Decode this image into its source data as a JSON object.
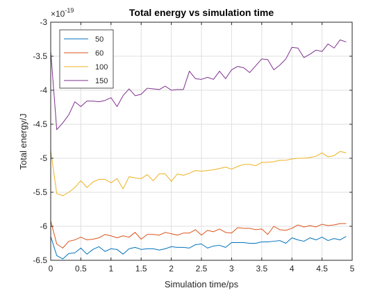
{
  "chart_data": {
    "type": "line",
    "title": "Total energy vs simulation time",
    "xlabel": "Simulation time/ps",
    "ylabel": "Total energy/J",
    "exponent_label": "×10",
    "exponent_power": "-19",
    "xlim": [
      0,
      5
    ],
    "ylim": [
      -6.5,
      -3
    ],
    "xticks": [
      0,
      0.5,
      1,
      1.5,
      2,
      2.5,
      3,
      3.5,
      4,
      4.5,
      5
    ],
    "xtick_labels": [
      "0",
      "0.5",
      "1",
      "1.5",
      "2",
      "2.5",
      "3",
      "3.5",
      "4",
      "4.5",
      "5"
    ],
    "yticks": [
      -6.5,
      -6,
      -5.5,
      -5,
      -4.5,
      -4,
      -3.5,
      -3
    ],
    "ytick_labels": [
      "-6.5",
      "-6",
      "-5.5",
      "-5",
      "-4.5",
      "-4",
      "-3.5",
      "-3"
    ],
    "grid": true,
    "legend_position": "top-left",
    "x": [
      0,
      0.1,
      0.2,
      0.3,
      0.4,
      0.5,
      0.6,
      0.7,
      0.8,
      0.9,
      1.0,
      1.1,
      1.2,
      1.3,
      1.4,
      1.5,
      1.6,
      1.7,
      1.8,
      1.9,
      2.0,
      2.1,
      2.2,
      2.3,
      2.4,
      2.5,
      2.6,
      2.7,
      2.8,
      2.9,
      3.0,
      3.1,
      3.2,
      3.3,
      3.4,
      3.5,
      3.6,
      3.7,
      3.8,
      3.9,
      4.0,
      4.1,
      4.2,
      4.3,
      4.4,
      4.5,
      4.6,
      4.7,
      4.8,
      4.9
    ],
    "series": [
      {
        "name": "50",
        "color": "#0072BD",
        "values": [
          -6.15,
          -6.43,
          -6.48,
          -6.4,
          -6.39,
          -6.32,
          -6.41,
          -6.34,
          -6.3,
          -6.37,
          -6.33,
          -6.34,
          -6.41,
          -6.33,
          -6.31,
          -6.34,
          -6.33,
          -6.33,
          -6.35,
          -6.33,
          -6.3,
          -6.31,
          -6.31,
          -6.32,
          -6.27,
          -6.26,
          -6.32,
          -6.29,
          -6.28,
          -6.31,
          -6.24,
          -6.24,
          -6.24,
          -6.25,
          -6.25,
          -6.23,
          -6.23,
          -6.22,
          -6.21,
          -6.25,
          -6.17,
          -6.2,
          -6.22,
          -6.17,
          -6.2,
          -6.16,
          -6.21,
          -6.18,
          -6.2,
          -6.15
        ]
      },
      {
        "name": "60",
        "color": "#D95319",
        "values": [
          -5.92,
          -6.26,
          -6.32,
          -6.22,
          -6.2,
          -6.16,
          -6.2,
          -6.19,
          -6.17,
          -6.12,
          -6.14,
          -6.17,
          -6.14,
          -6.16,
          -6.09,
          -6.19,
          -6.12,
          -6.12,
          -6.13,
          -6.09,
          -6.11,
          -6.13,
          -6.1,
          -6.1,
          -6.05,
          -6.13,
          -6.06,
          -6.08,
          -6.04,
          -6.09,
          -6.1,
          -6.02,
          -6.03,
          -6.03,
          -6.05,
          -6.04,
          -6.12,
          -6.0,
          -6.05,
          -6.06,
          -6.03,
          -5.98,
          -6.01,
          -5.99,
          -6.01,
          -5.97,
          -5.99,
          -5.98,
          -5.96,
          -5.96
        ]
      },
      {
        "name": "100",
        "color": "#EDB120",
        "values": [
          -4.88,
          -5.52,
          -5.55,
          -5.5,
          -5.43,
          -5.33,
          -5.43,
          -5.35,
          -5.31,
          -5.31,
          -5.36,
          -5.3,
          -5.45,
          -5.27,
          -5.29,
          -5.3,
          -5.24,
          -5.33,
          -5.23,
          -5.23,
          -5.34,
          -5.23,
          -5.25,
          -5.22,
          -5.18,
          -5.19,
          -5.18,
          -5.17,
          -5.15,
          -5.13,
          -5.16,
          -5.12,
          -5.09,
          -5.09,
          -5.11,
          -5.06,
          -5.06,
          -5.05,
          -5.03,
          -5.03,
          -5.01,
          -5.0,
          -5.0,
          -4.99,
          -4.97,
          -4.92,
          -4.98,
          -4.96,
          -4.9,
          -4.92
        ]
      },
      {
        "name": "150",
        "color": "#7E2F8E",
        "values": [
          -3.42,
          -4.58,
          -4.48,
          -4.36,
          -4.17,
          -4.24,
          -4.16,
          -4.16,
          -4.17,
          -4.15,
          -4.11,
          -4.24,
          -4.08,
          -3.98,
          -4.08,
          -4.06,
          -3.97,
          -3.98,
          -3.99,
          -3.94,
          -4.0,
          -3.99,
          -3.99,
          -3.72,
          -3.83,
          -3.84,
          -3.81,
          -3.84,
          -3.72,
          -3.83,
          -3.7,
          -3.65,
          -3.67,
          -3.74,
          -3.64,
          -3.54,
          -3.55,
          -3.7,
          -3.63,
          -3.54,
          -3.37,
          -3.38,
          -3.52,
          -3.47,
          -3.41,
          -3.43,
          -3.32,
          -3.38,
          -3.26,
          -3.29
        ]
      }
    ]
  }
}
